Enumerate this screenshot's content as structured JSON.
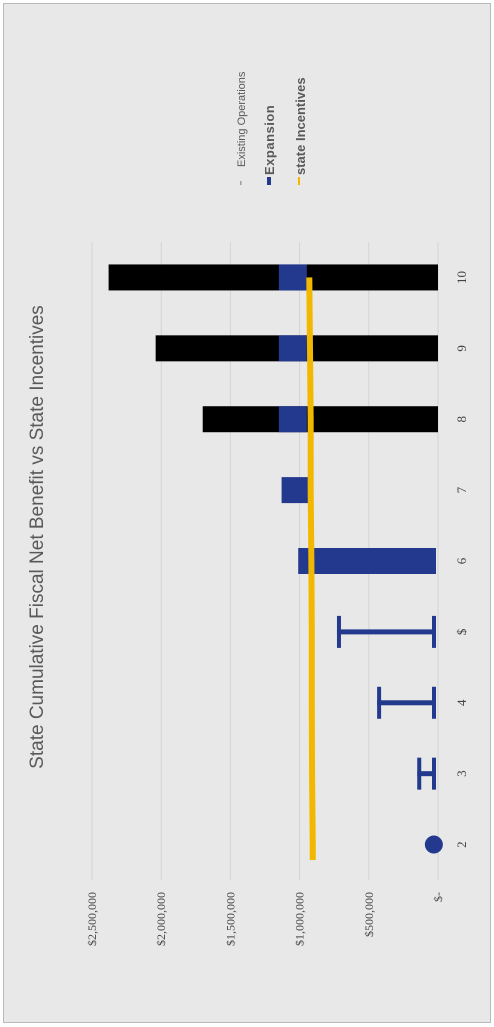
{
  "chart_data": {
    "type": "bar",
    "title": "State Cumulative Fiscal Net Benefit vs State Incentives",
    "xlabel": "",
    "ylabel": "",
    "categories": [
      "2",
      "3",
      "4",
      "5",
      "6",
      "7",
      "8",
      "9",
      "10"
    ],
    "category_labels_shown": [
      "2",
      "3",
      "4",
      "$",
      "6",
      "7",
      "8",
      "9",
      "10"
    ],
    "ylim": [
      0,
      2500000
    ],
    "y_ticks": [
      "$-",
      "$500,000",
      "$1,000,000",
      "$1,500,000",
      "$2,000,000",
      "$2,500,000"
    ],
    "series": [
      {
        "name": "Existing Operations",
        "type": "bar",
        "color": "#000000",
        "values": [
          0,
          0,
          0,
          0,
          0,
          0,
          1700000,
          2040000,
          2380000
        ]
      },
      {
        "name": "Expansion",
        "type": "bar",
        "color": "#23398e",
        "values": [
          60000,
          150000,
          440000,
          730000,
          1010000,
          1130000,
          1150000,
          1150000,
          1150000
        ]
      },
      {
        "name": "state Incentives",
        "type": "line",
        "color": "#f2b800",
        "values": [
          905000,
          910000,
          912000,
          912000,
          915000,
          920000,
          920000,
          925000,
          930000
        ]
      }
    ],
    "legend_position": "top-right",
    "grid": true,
    "gridline_color": "#d4d4d4"
  }
}
